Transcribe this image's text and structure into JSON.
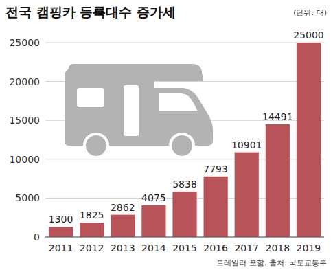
{
  "chart_data": {
    "type": "bar",
    "title": "전국 캠핑카 등록대수 증가세",
    "subtitle": "(단위: 대)",
    "source": "트레일러 포함. 출처: 국토교통부",
    "categories": [
      "2011",
      "2012",
      "2013",
      "2014",
      "2015",
      "2016",
      "2017",
      "2018",
      "2019"
    ],
    "values": [
      1300,
      1825,
      2862,
      4075,
      5838,
      7793,
      10901,
      14491,
      25000
    ],
    "color": "#b9535a",
    "ylim": [
      0,
      25000
    ],
    "yticks": [
      0,
      5000,
      10000,
      15000,
      20000,
      25000
    ],
    "grid": true,
    "data_labels": true
  }
}
